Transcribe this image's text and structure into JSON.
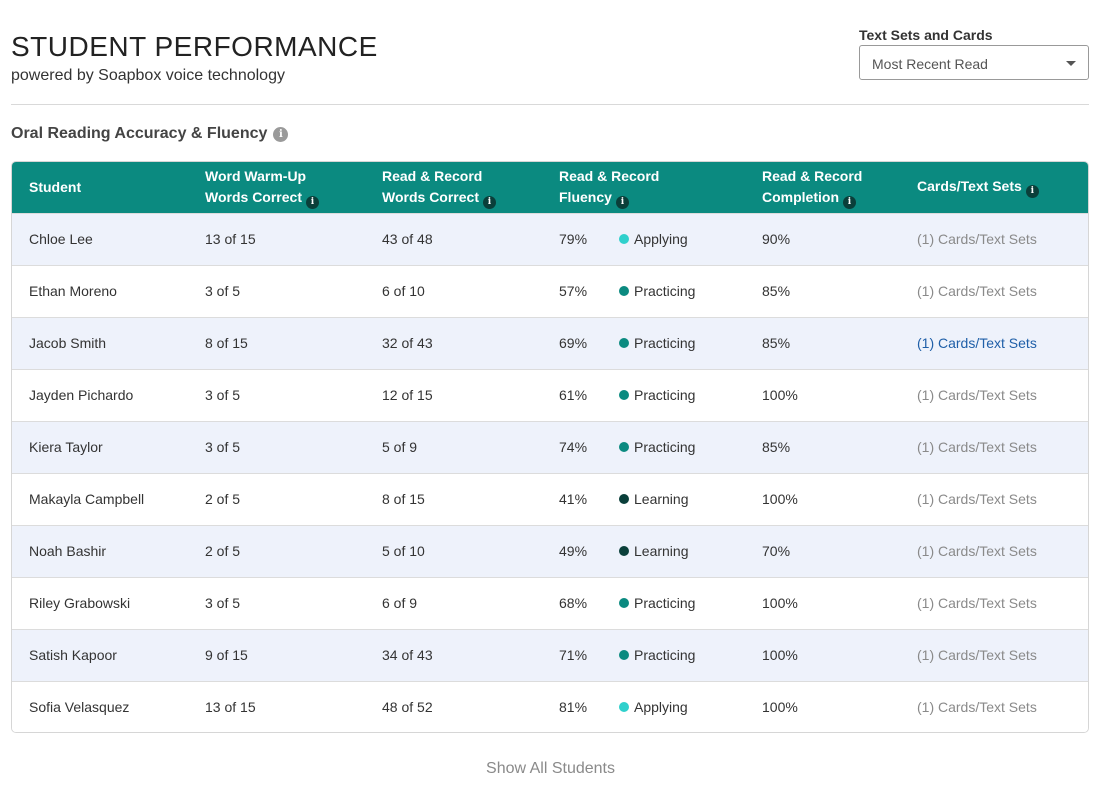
{
  "header": {
    "title": "STUDENT PERFORMANCE",
    "subtitle": "powered by Soapbox voice technology"
  },
  "filter": {
    "label": "Text Sets and Cards",
    "selected": "Most Recent Read"
  },
  "section": {
    "heading": "Oral Reading Accuracy & Fluency"
  },
  "table": {
    "columns": [
      {
        "line1": "Student",
        "line2": ""
      },
      {
        "line1": "Word Warm-Up",
        "line2": "Words Correct"
      },
      {
        "line1": "Read & Record",
        "line2": "Words Correct"
      },
      {
        "line1": "Read & Record",
        "line2": "Fluency"
      },
      {
        "line1": "Read & Record",
        "line2": "Completion"
      },
      {
        "line1": "Cards/Text Sets",
        "line2": ""
      }
    ],
    "status_colors": {
      "Applying": "#2fd0cc",
      "Practicing": "#0b8a80",
      "Learning": "#0a3f3a"
    },
    "rows": [
      {
        "student": "Chloe Lee",
        "warmup": "13 of 15",
        "words": "43 of 48",
        "fluency_pct": "79%",
        "status": "Applying",
        "completion": "90%",
        "cards": "(1) Cards/Text Sets",
        "cards_active": false
      },
      {
        "student": "Ethan Moreno",
        "warmup": "3 of 5",
        "words": "6 of 10",
        "fluency_pct": "57%",
        "status": "Practicing",
        "completion": "85%",
        "cards": "(1) Cards/Text Sets",
        "cards_active": false
      },
      {
        "student": "Jacob Smith",
        "warmup": "8 of 15",
        "words": "32 of 43",
        "fluency_pct": "69%",
        "status": "Practicing",
        "completion": "85%",
        "cards": "(1) Cards/Text Sets",
        "cards_active": true
      },
      {
        "student": "Jayden Pichardo",
        "warmup": "3 of 5",
        "words": "12 of 15",
        "fluency_pct": "61%",
        "status": "Practicing",
        "completion": "100%",
        "cards": "(1) Cards/Text Sets",
        "cards_active": false
      },
      {
        "student": "Kiera Taylor",
        "warmup": "3 of 5",
        "words": "5 of 9",
        "fluency_pct": "74%",
        "status": "Practicing",
        "completion": "85%",
        "cards": "(1) Cards/Text Sets",
        "cards_active": false
      },
      {
        "student": "Makayla Campbell",
        "warmup": "2 of 5",
        "words": "8 of 15",
        "fluency_pct": "41%",
        "status": "Learning",
        "completion": "100%",
        "cards": "(1) Cards/Text Sets",
        "cards_active": false
      },
      {
        "student": "Noah Bashir",
        "warmup": "2 of 5",
        "words": "5 of 10",
        "fluency_pct": "49%",
        "status": "Learning",
        "completion": "70%",
        "cards": "(1) Cards/Text Sets",
        "cards_active": false
      },
      {
        "student": "Riley Grabowski",
        "warmup": "3 of 5",
        "words": "6 of 9",
        "fluency_pct": "68%",
        "status": "Practicing",
        "completion": "100%",
        "cards": "(1) Cards/Text Sets",
        "cards_active": false
      },
      {
        "student": "Satish Kapoor",
        "warmup": "9 of 15",
        "words": "34 of 43",
        "fluency_pct": "71%",
        "status": "Practicing",
        "completion": "100%",
        "cards": "(1) Cards/Text Sets",
        "cards_active": false
      },
      {
        "student": "Sofia Velasquez",
        "warmup": "13 of 15",
        "words": "48 of 52",
        "fluency_pct": "81%",
        "status": "Applying",
        "completion": "100%",
        "cards": "(1) Cards/Text Sets",
        "cards_active": false
      }
    ]
  },
  "footer": {
    "show_all_label": "Show All Students"
  }
}
